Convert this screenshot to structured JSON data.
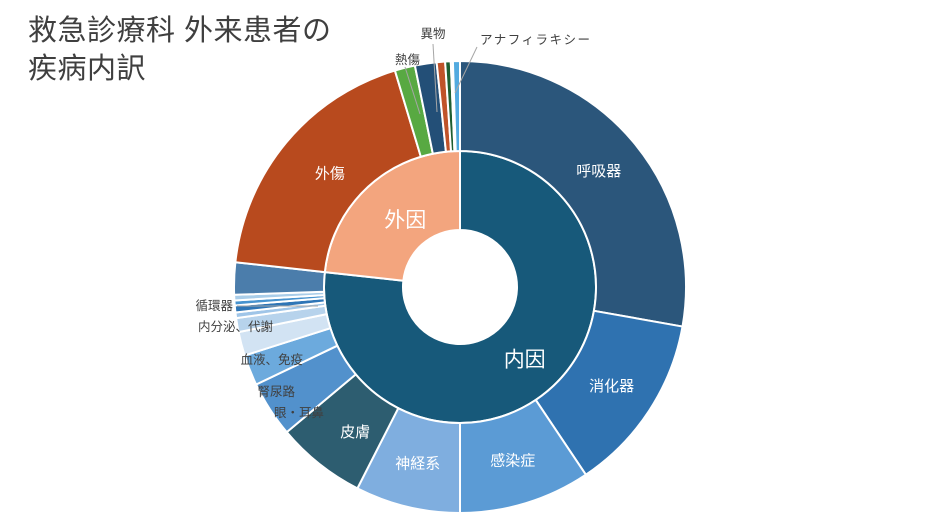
{
  "title": {
    "text": "救急診療科 外来患者の疾病内訳"
  },
  "chart_data": {
    "type": "sunburst",
    "title": "救急診療科 外来患者の疾病内訳",
    "units": "percent_of_patients",
    "start_angle_deg": 0,
    "direction": "clockwise",
    "legend": "none",
    "colors": {
      "label_dark": "#404040",
      "label_light": "#ffffff",
      "leader_line": "#a6a6a6",
      "separator": "#ffffff"
    },
    "inner_ring": [
      {
        "id": "internal-cause",
        "label": "内因",
        "value": 76.75,
        "color": "#17597A"
      },
      {
        "id": "external-cause",
        "label": "外因",
        "value": 23.25,
        "color": "#F3A57E"
      }
    ],
    "outer_ring": [
      {
        "id": "respiratory",
        "label": "呼吸器",
        "parent": "内因",
        "value": 27.8,
        "color": "#2B567B",
        "label_style": "inside"
      },
      {
        "id": "digestive",
        "label": "消化器",
        "parent": "内因",
        "value": 12.8,
        "color": "#2F72B0",
        "label_style": "inside"
      },
      {
        "id": "infectious",
        "label": "感染症",
        "parent": "内因",
        "value": 9.4,
        "color": "#5B9BD5",
        "label_style": "inside"
      },
      {
        "id": "nervous-system",
        "label": "神経系",
        "parent": "内因",
        "value": 7.5,
        "color": "#7FAEDF",
        "label_style": "inside"
      },
      {
        "id": "skin",
        "label": "皮膚",
        "parent": "内因",
        "value": 6.4,
        "color": "#2D5D70",
        "label_style": "inside"
      },
      {
        "id": "eye-ent",
        "label": "眼・耳鼻",
        "parent": "内因",
        "value": 4.0,
        "color": "#5291CC",
        "label_style": "outside"
      },
      {
        "id": "renal-urinary",
        "label": "腎尿路",
        "parent": "内因",
        "value": 2.2,
        "color": "#6CAADD",
        "label_style": "outside"
      },
      {
        "id": "blood-immune",
        "label": "血液、免疫",
        "parent": "内因",
        "value": 1.7,
        "color": "#D2E3F3",
        "label_style": "outside"
      },
      {
        "id": "endocrine-metabolic",
        "label": "内分泌、代謝",
        "parent": "内因",
        "value": 1.0,
        "color": "#B7D3EC",
        "label_style": "outside"
      },
      {
        "id": "unlabeled-1",
        "label": "",
        "parent": "内因",
        "value": 0.4,
        "color": "#9FC5E8",
        "label_style": "none"
      },
      {
        "id": "circulatory",
        "label": "循環器",
        "parent": "内因",
        "value": 0.5,
        "color": "#2E75B6",
        "label_style": "outside"
      },
      {
        "id": "unlabeled-2",
        "label": "",
        "parent": "内因",
        "value": 0.35,
        "color": "#4793CF",
        "label_style": "none"
      },
      {
        "id": "unlabeled-3",
        "label": "",
        "parent": "内因",
        "value": 0.4,
        "color": "#A9CDE9",
        "label_style": "none"
      },
      {
        "id": "unlabeled-4",
        "label": "",
        "parent": "内因",
        "value": 2.3,
        "color": "#4B7DAB",
        "label_style": "none"
      },
      {
        "id": "trauma",
        "label": "外傷",
        "parent": "外因",
        "value": 18.6,
        "color": "#B84A1E",
        "label_style": "inside"
      },
      {
        "id": "burn",
        "label": "熱傷",
        "parent": "外因",
        "value": 1.45,
        "color": "#58A942",
        "label_style": "outside"
      },
      {
        "id": "foreign-body",
        "label": "異物",
        "parent": "外因",
        "value": 1.55,
        "color": "#234F77",
        "label_style": "outside"
      },
      {
        "id": "unlabeled-5",
        "label": "",
        "parent": "外因",
        "value": 0.6,
        "color": "#C0532A",
        "label_style": "none"
      },
      {
        "id": "unlabeled-6",
        "label": "",
        "parent": "外因",
        "value": 0.4,
        "color": "#1E5E31",
        "label_style": "none"
      },
      {
        "id": "unlabeled-7",
        "label": "",
        "parent": "外因",
        "value": 0.15,
        "color": "#BDD7EE",
        "label_style": "none"
      },
      {
        "id": "anaphylaxis",
        "label": "アナフィラキシー",
        "parent": "外因",
        "value": 0.5,
        "color": "#52AADF",
        "label_style": "outside"
      }
    ]
  }
}
